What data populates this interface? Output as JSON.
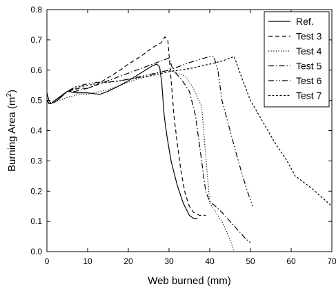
{
  "chart_data": {
    "type": "line",
    "title": "",
    "xlabel": "Web burned (mm)",
    "ylabel_prefix": "Burning Area (m",
    "ylabel_sup": "2",
    "ylabel_suffix": ")",
    "xlim": [
      0,
      70
    ],
    "ylim": [
      0.0,
      0.8
    ],
    "xticks": [
      0,
      10,
      20,
      30,
      40,
      50,
      60,
      70
    ],
    "yticks": [
      0.0,
      0.1,
      0.2,
      0.3,
      0.4,
      0.5,
      0.6,
      0.7,
      0.8
    ],
    "xtick_labels": [
      "0",
      "10",
      "20",
      "30",
      "40",
      "50",
      "60",
      "70"
    ],
    "ytick_labels": [
      "0.0",
      "0.1",
      "0.2",
      "0.3",
      "0.4",
      "0.5",
      "0.6",
      "0.7",
      "0.8"
    ],
    "grid": false,
    "legend_position": "top-right",
    "series": [
      {
        "name": "Ref.",
        "dash": "solid",
        "x": [
          0,
          0.5,
          1,
          2,
          3,
          5,
          7,
          10,
          13,
          15,
          18,
          20,
          23,
          26,
          27,
          27.7,
          28.2,
          28.8,
          29.5,
          30.5,
          32,
          33.5,
          35,
          36,
          37
        ],
        "y": [
          0.525,
          0.5,
          0.49,
          0.495,
          0.505,
          0.53,
          0.525,
          0.525,
          0.52,
          0.53,
          0.55,
          0.565,
          0.59,
          0.615,
          0.62,
          0.61,
          0.56,
          0.45,
          0.38,
          0.3,
          0.22,
          0.16,
          0.12,
          0.11,
          0.11
        ]
      },
      {
        "name": "Test 3",
        "dash": "dash",
        "x": [
          0,
          0.5,
          1,
          3,
          5,
          8,
          10,
          12,
          15,
          18,
          20,
          23,
          26,
          28,
          29,
          29.7,
          30.3,
          30.8,
          31.2,
          32,
          33,
          34,
          35,
          36,
          37.5,
          39
        ],
        "y": [
          0.5,
          0.49,
          0.49,
          0.51,
          0.53,
          0.54,
          0.54,
          0.55,
          0.575,
          0.6,
          0.62,
          0.645,
          0.675,
          0.69,
          0.71,
          0.7,
          0.6,
          0.52,
          0.45,
          0.36,
          0.26,
          0.19,
          0.15,
          0.13,
          0.12,
          0.12
        ]
      },
      {
        "name": "Test 4",
        "dash": "dot",
        "x": [
          0,
          0.5,
          1,
          3,
          5,
          8,
          10,
          13,
          15,
          18,
          20,
          22,
          25,
          28,
          30,
          32,
          34,
          36,
          38,
          40,
          41,
          42,
          43,
          44,
          45,
          45.5,
          46
        ],
        "y": [
          0.5,
          0.49,
          0.49,
          0.5,
          0.51,
          0.52,
          0.52,
          0.53,
          0.535,
          0.55,
          0.56,
          0.57,
          0.58,
          0.595,
          0.6,
          0.59,
          0.58,
          0.54,
          0.48,
          0.16,
          0.14,
          0.12,
          0.1,
          0.07,
          0.04,
          0.02,
          0.0
        ]
      },
      {
        "name": "Test 5",
        "dash": "dashdot",
        "x": [
          0,
          0.5,
          1,
          3,
          5,
          7,
          10,
          12,
          15,
          18,
          20,
          23,
          26,
          28,
          30,
          30.5,
          31,
          33,
          35,
          36.5,
          38,
          39,
          40,
          41,
          43,
          45,
          47,
          49,
          50
        ],
        "y": [
          0.5,
          0.49,
          0.49,
          0.51,
          0.53,
          0.53,
          0.54,
          0.55,
          0.565,
          0.58,
          0.59,
          0.605,
          0.62,
          0.63,
          0.64,
          0.62,
          0.6,
          0.57,
          0.53,
          0.45,
          0.3,
          0.2,
          0.165,
          0.155,
          0.13,
          0.1,
          0.07,
          0.04,
          0.03
        ]
      },
      {
        "name": "Test 6",
        "dash": "dashdotdot",
        "x": [
          0,
          0.5,
          1,
          3,
          5,
          7,
          10,
          12,
          15,
          18,
          20,
          25,
          30,
          35,
          40,
          41,
          42,
          43,
          45,
          47,
          49,
          50.5
        ],
        "y": [
          0.5,
          0.49,
          0.49,
          0.51,
          0.53,
          0.545,
          0.555,
          0.56,
          0.56,
          0.565,
          0.57,
          0.585,
          0.6,
          0.625,
          0.645,
          0.645,
          0.6,
          0.5,
          0.4,
          0.3,
          0.21,
          0.15
        ]
      },
      {
        "name": "Test 7",
        "dash": "shortdash",
        "x": [
          0,
          0.5,
          1,
          3,
          5,
          8,
          10,
          12,
          15,
          18,
          20,
          25,
          30,
          35,
          40,
          43,
          46,
          48,
          50,
          53,
          56,
          59,
          61,
          65,
          70
        ],
        "y": [
          0.5,
          0.49,
          0.49,
          0.51,
          0.53,
          0.545,
          0.55,
          0.555,
          0.56,
          0.565,
          0.57,
          0.58,
          0.595,
          0.605,
          0.62,
          0.63,
          0.645,
          0.57,
          0.5,
          0.43,
          0.36,
          0.3,
          0.25,
          0.21,
          0.15
        ]
      }
    ]
  }
}
